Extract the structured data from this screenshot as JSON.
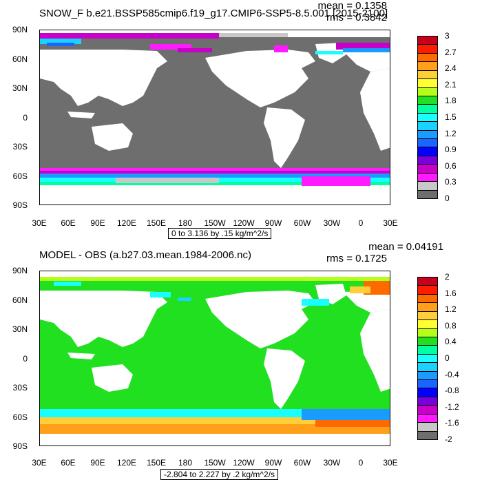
{
  "top": {
    "title": "SNOW_F b.e21.BSSP585cmip6.f19_g17.CMIP6-SSP5-8.5.001 [2015-2100]",
    "mean": "mean = 0.1358",
    "rms": "rms = 0.3842",
    "subtitle": "0 to 3.136 by .15 kg/m^2/s",
    "colorbar_labels": [
      "3",
      "2.7",
      "2.4",
      "2.1",
      "1.8",
      "1.5",
      "1.2",
      "0.9",
      "0.6",
      "0.3",
      "0"
    ],
    "colorbar_colors": [
      "#c8001e",
      "#ff1a00",
      "#ff6a00",
      "#ff9f1a",
      "#ffcf3a",
      "#ffff33",
      "#b4ff19",
      "#20e020",
      "#00ff9e",
      "#19ffff",
      "#19d2ff",
      "#199bff",
      "#1a64ff",
      "#0000ff",
      "#7800dc",
      "#c800c8",
      "#ff1aff",
      "#c8c8c8",
      "#6e6e6e"
    ]
  },
  "bottom": {
    "title": "MODEL - OBS (a.b27.03.mean.1984-2006.nc)",
    "mean": "mean = 0.04191",
    "rms": "rms = 0.1725",
    "subtitle": "-2.804 to 2.227 by .2 kg/m^2/s",
    "colorbar_labels": [
      "2",
      "1.6",
      "1.2",
      "0.8",
      "0.4",
      "0",
      "-0.4",
      "-0.8",
      "-1.2",
      "-1.6",
      "-2"
    ],
    "colorbar_colors": [
      "#c8001e",
      "#ff1a00",
      "#ff6a00",
      "#ff9f1a",
      "#ffcf3a",
      "#ffff33",
      "#b4ff19",
      "#20e020",
      "#00ff9e",
      "#19ffff",
      "#19d2ff",
      "#199bff",
      "#1a64ff",
      "#0000ff",
      "#7800dc",
      "#c800c8",
      "#ff1aff",
      "#c8c8c8",
      "#6e6e6e"
    ]
  },
  "lat_labels": [
    "90N",
    "60N",
    "30N",
    "0",
    "30S",
    "60S",
    "90S"
  ],
  "lon_labels": [
    "30E",
    "60E",
    "90E",
    "120E",
    "150E",
    "180",
    "150W",
    "120W",
    "90W",
    "60W",
    "30W",
    "0",
    "30E"
  ]
}
